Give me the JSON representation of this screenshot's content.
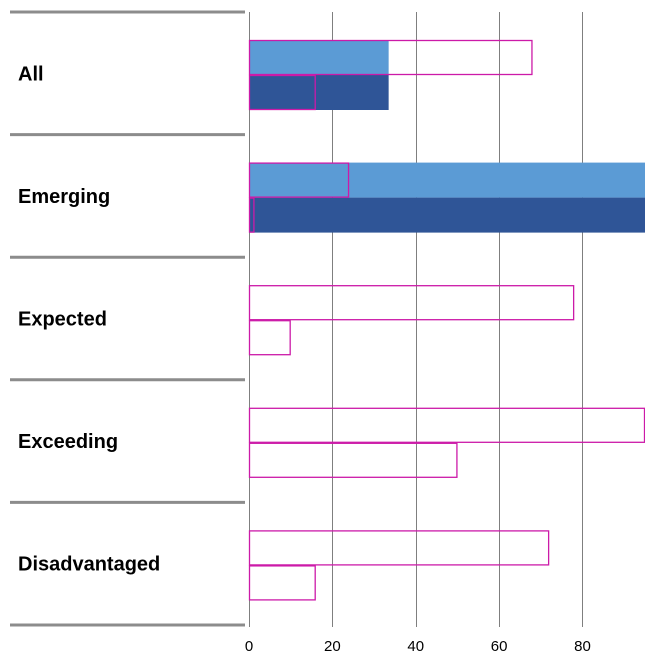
{
  "chart_data": {
    "type": "bar",
    "orientation": "horizontal",
    "categories": [
      "All",
      "Emerging",
      "Expected",
      "Exceeding",
      "Disadvantaged"
    ],
    "x_ticks": [
      "0",
      "20",
      "40",
      "60",
      "80"
    ],
    "xlim": [
      0,
      95
    ],
    "grid": true,
    "series": [
      {
        "style": "filled",
        "color": "#5b9bd5",
        "values": [
          33.5,
          95,
          null,
          null,
          null
        ]
      },
      {
        "style": "filled",
        "color": "#2f5597",
        "values": [
          33.5,
          95,
          null,
          null,
          null
        ]
      },
      {
        "style": "outline",
        "color": "#cc1aa8",
        "values": [
          68,
          24,
          78,
          95,
          72
        ]
      },
      {
        "style": "outline",
        "color": "#cc1aa8",
        "values": [
          16,
          1.3,
          10,
          50,
          16
        ]
      }
    ]
  }
}
